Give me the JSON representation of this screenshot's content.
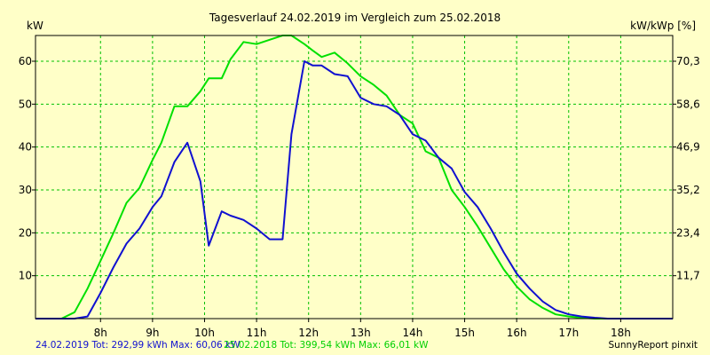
{
  "chart_data": {
    "type": "line",
    "title": "Tagesverlauf 24.02.2019 im Vergleich zum 25.02.2018",
    "ylabel_left": "kW",
    "ylabel_right": "kW/kWp [%]",
    "ylim": [
      0,
      66
    ],
    "xlim": [
      6.75,
      19.0
    ],
    "y_ticks_left": [
      10,
      20,
      30,
      40,
      50,
      60
    ],
    "y_ticks_right": [
      "11,7",
      "23,4",
      "35,2",
      "46,9",
      "58,6",
      "70,3"
    ],
    "x_ticks": [
      {
        "value": 8,
        "label": "8h"
      },
      {
        "value": 9,
        "label": "9h"
      },
      {
        "value": 10,
        "label": "10h"
      },
      {
        "value": 11,
        "label": "11h"
      },
      {
        "value": 12,
        "label": "12h"
      },
      {
        "value": 13,
        "label": "13h"
      },
      {
        "value": 14,
        "label": "14h"
      },
      {
        "value": 15,
        "label": "15h"
      },
      {
        "value": 16,
        "label": "16h"
      },
      {
        "value": 17,
        "label": "17h"
      },
      {
        "value": 18,
        "label": "18h"
      }
    ],
    "grid": true,
    "series": [
      {
        "name": "24.02.2019",
        "color": "#1010d0",
        "x": [
          6.75,
          7.0,
          7.25,
          7.5,
          7.75,
          8.0,
          8.25,
          8.5,
          8.75,
          9.0,
          9.17,
          9.42,
          9.67,
          9.92,
          10.08,
          10.33,
          10.5,
          10.75,
          11.0,
          11.25,
          11.5,
          11.67,
          11.92,
          12.08,
          12.25,
          12.5,
          12.75,
          13.0,
          13.25,
          13.5,
          13.75,
          14.0,
          14.25,
          14.5,
          14.75,
          15.0,
          15.25,
          15.5,
          15.75,
          16.0,
          16.25,
          16.5,
          16.75,
          17.0,
          17.25,
          17.5,
          17.75,
          18.0,
          18.25,
          18.5,
          18.75,
          19.0
        ],
        "values": [
          0,
          0,
          0,
          0,
          0.5,
          6,
          12,
          17.5,
          21,
          26,
          28.5,
          36.5,
          41,
          32,
          17,
          25,
          24,
          23,
          21,
          18.5,
          18.5,
          43,
          60,
          59,
          59,
          57,
          56.5,
          51.5,
          50,
          49.5,
          47.5,
          43,
          41.5,
          37.5,
          35,
          29.5,
          26,
          21,
          15.5,
          10.5,
          7,
          4,
          2,
          1,
          0.5,
          0.2,
          0,
          0,
          0,
          0,
          0,
          0
        ]
      },
      {
        "name": "25.02.2018",
        "color": "#00e000",
        "x": [
          6.75,
          7.0,
          7.25,
          7.5,
          7.75,
          8.0,
          8.25,
          8.5,
          8.75,
          9.0,
          9.17,
          9.42,
          9.67,
          9.92,
          10.08,
          10.33,
          10.5,
          10.75,
          11.0,
          11.25,
          11.5,
          11.67,
          11.92,
          12.08,
          12.25,
          12.5,
          12.75,
          13.0,
          13.25,
          13.5,
          13.75,
          14.0,
          14.25,
          14.5,
          14.75,
          15.0,
          15.25,
          15.5,
          15.75,
          16.0,
          16.25,
          16.5,
          16.75,
          17.0,
          17.25,
          17.5,
          17.75,
          18.0,
          18.25,
          18.5,
          18.75,
          19.0
        ],
        "values": [
          0,
          0,
          0,
          1.5,
          7,
          13.5,
          20,
          27,
          30.5,
          37,
          41,
          49.5,
          49.5,
          53,
          56,
          56,
          60.5,
          64.5,
          64,
          65,
          66,
          66,
          64,
          62.5,
          61,
          62,
          59.5,
          56.5,
          54.5,
          52,
          47.5,
          45.5,
          39,
          37.5,
          30,
          26,
          21.5,
          16.5,
          11.5,
          7.5,
          4.5,
          2.5,
          1,
          0.5,
          0.2,
          0,
          0,
          0,
          0,
          0,
          0,
          0
        ]
      }
    ]
  },
  "footer": {
    "stats_2019": "24.02.2019 Tot: 292,99 kWh Max: 60,06 kW",
    "stats_2018": "25.02.2018 Tot: 399,54 kWh Max: 66,01 kW",
    "brand": "SunnyReport pinxit"
  },
  "colors": {
    "background": "#ffffc8",
    "grid": "#00c000",
    "axis": "#000000"
  }
}
